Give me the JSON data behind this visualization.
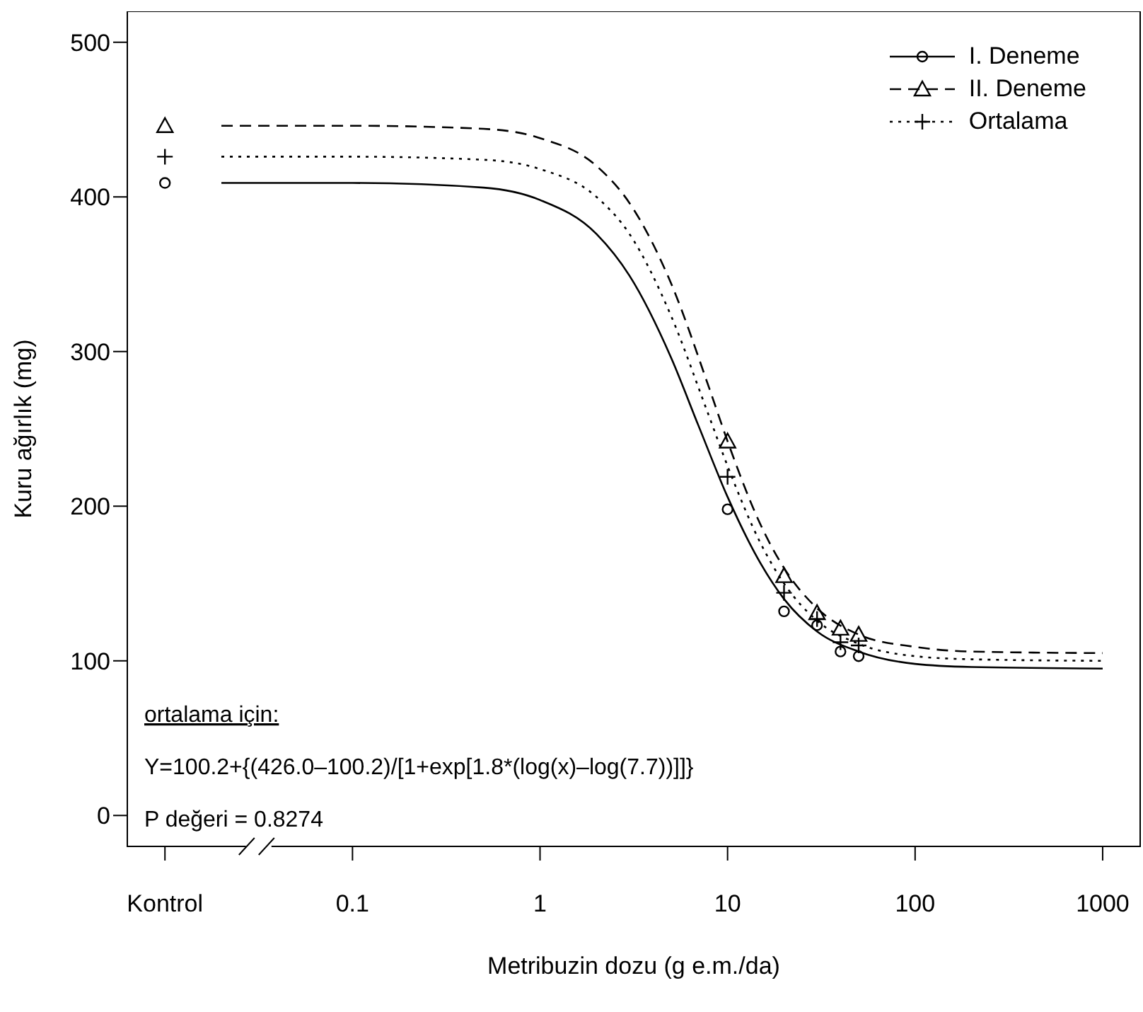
{
  "chart_data": {
    "type": "line",
    "xlabel": "Metribuzin dozu (g e.m./da)",
    "ylabel": "Kuru ağırlık (mg)",
    "annotations": [
      "ortalama için:",
      "Y=100.2+{(426.0–100.2)/[1+exp[1.8*(log(x)–log(7.7))]]}",
      "P değeri = 0.8274"
    ],
    "log": "x",
    "xlim": [
      0.0063,
      1585
    ],
    "ylim": [
      -20,
      520
    ],
    "xticks": [
      {
        "value": 0.01,
        "label": "Kontrol"
      },
      0.1,
      1,
      10,
      100,
      1000
    ],
    "yticks": [
      0,
      100,
      200,
      300,
      400,
      500
    ],
    "legend": "top right",
    "series": [
      {
        "name": "I. Deneme",
        "line_style": "solid",
        "color": "#000000",
        "x": [
          0.02,
          0.1,
          0.5,
          1,
          2,
          3,
          5,
          7,
          10,
          15,
          20,
          30,
          50,
          100,
          200,
          1000
        ],
        "values": [
          409,
          409,
          406,
          398,
          376,
          349,
          296,
          252,
          206,
          163,
          140,
          119,
          106,
          98,
          96,
          95
        ]
      },
      {
        "type": "scatter",
        "marker": "circle",
        "color": "#000000",
        "x": [
          0.01,
          10,
          20,
          30,
          40,
          50
        ],
        "values": [
          409,
          198,
          132,
          123,
          106,
          103
        ]
      },
      {
        "name": "II. Deneme",
        "line_style": "dashed",
        "color": "#000000",
        "x": [
          0.02,
          0.1,
          0.5,
          1,
          2,
          3,
          5,
          8,
          10,
          15,
          20,
          30,
          50,
          100,
          200,
          1000
        ],
        "values": [
          446,
          446,
          444,
          438,
          420,
          396,
          344,
          276,
          242,
          188,
          160,
          134,
          117,
          109,
          106,
          105
        ]
      },
      {
        "type": "scatter",
        "marker": "triangle",
        "color": "#000000",
        "x": [
          0.01,
          10,
          20,
          30,
          40,
          50
        ],
        "values": [
          446,
          242,
          155,
          131,
          121,
          117
        ]
      },
      {
        "name": "Ortalama",
        "line_style": "dotted",
        "color": "#000000",
        "x": [
          0.02,
          0.1,
          0.5,
          1,
          2,
          3,
          5,
          7.7,
          10,
          15,
          20,
          30,
          50,
          100,
          200,
          1000
        ],
        "values": [
          426,
          426,
          424,
          418,
          400,
          376,
          323,
          263,
          226,
          176,
          150,
          126,
          111,
          103,
          101,
          100
        ]
      },
      {
        "type": "scatter",
        "marker": "cross",
        "color": "#000000",
        "x": [
          0.01,
          10,
          20,
          30,
          40,
          50
        ],
        "values": [
          426,
          219,
          144,
          127,
          112,
          110
        ]
      }
    ]
  }
}
